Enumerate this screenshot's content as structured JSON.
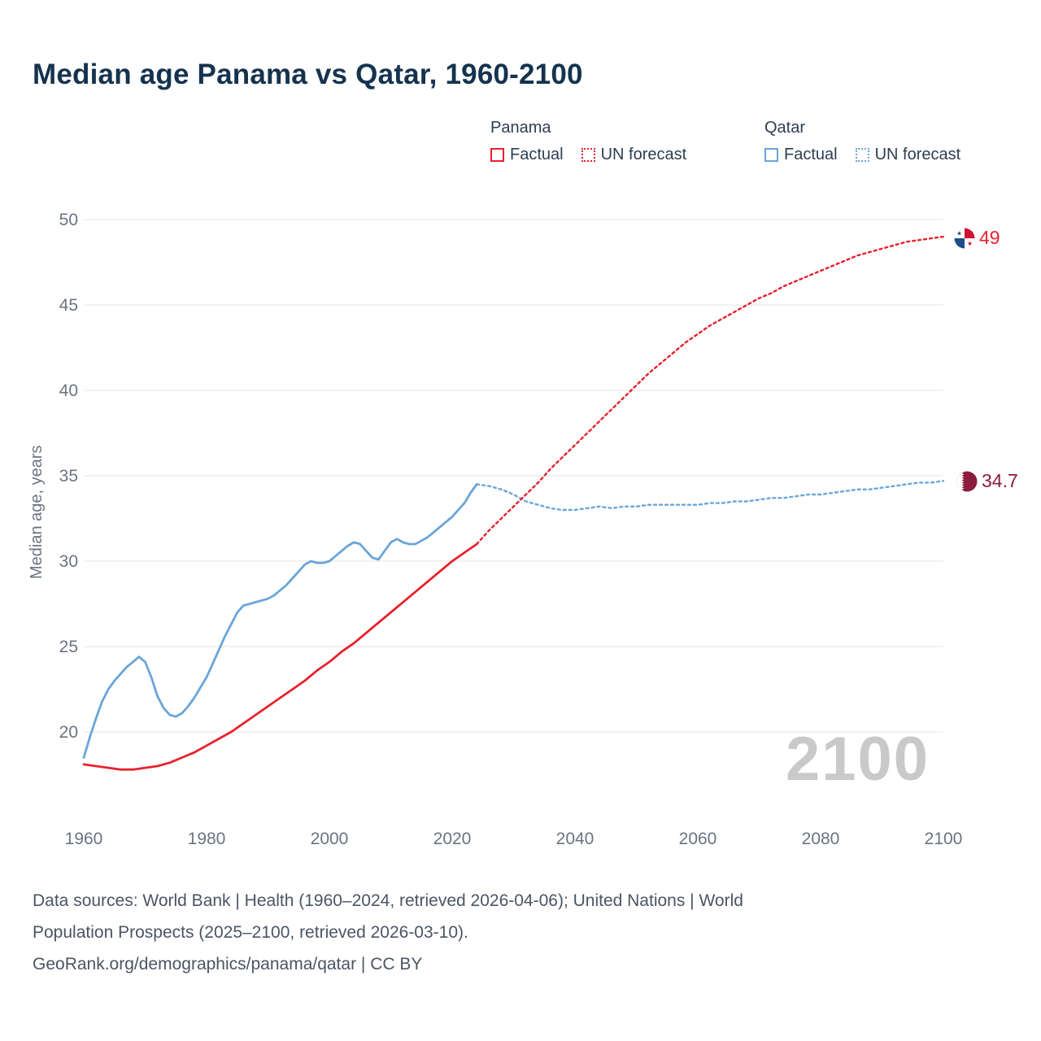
{
  "title": "Median age Panama vs Qatar, 1960-2100",
  "legend": {
    "panama": {
      "label": "Panama",
      "factual": "Factual",
      "forecast": "UN forecast"
    },
    "qatar": {
      "label": "Qatar",
      "factual": "Factual",
      "forecast": "UN forecast"
    }
  },
  "watermark": "2100",
  "end_labels": {
    "panama": "49",
    "qatar": "34.7"
  },
  "footer": {
    "line1": "Data sources: World Bank | Health (1960–2024, retrieved 2026-04-06); United Nations | World",
    "line2": "Population Prospects (2025–2100, retrieved 2026-03-10).",
    "line3": "GeoRank.org/demographics/panama/qatar | CC BY"
  },
  "colors": {
    "panama": "#e8212e",
    "qatar": "#6aa5d8",
    "qatar_label": "#8d1b3d",
    "grid": "#e4e4e4",
    "axis_text": "#6b7380",
    "title": "#15334e",
    "watermark": "#c9c9c9",
    "footer_text": "#4b5563"
  },
  "chart_data": {
    "type": "line",
    "title": "Median age Panama vs Qatar, 1960-2100",
    "xlabel": "",
    "ylabel": "Median age, years",
    "xlim": [
      1955,
      2112
    ],
    "ylim": [
      16.5,
      50
    ],
    "grid": "horizontal-only",
    "legend_position": "top-right",
    "yticks": [
      20,
      25,
      30,
      35,
      40,
      45,
      50
    ],
    "xticks": [
      1960,
      1980,
      2000,
      2020,
      2040,
      2060,
      2080,
      2100
    ],
    "series": [
      {
        "name": "Qatar factual",
        "country": "Qatar",
        "kind": "factual",
        "color_key": "qatar",
        "dash": false,
        "points": [
          [
            1960,
            18.5
          ],
          [
            1961,
            19.7
          ],
          [
            1962,
            20.8
          ],
          [
            1963,
            21.8
          ],
          [
            1964,
            22.5
          ],
          [
            1965,
            23.0
          ],
          [
            1966,
            23.4
          ],
          [
            1967,
            23.8
          ],
          [
            1968,
            24.1
          ],
          [
            1969,
            24.4
          ],
          [
            1970,
            24.1
          ],
          [
            1971,
            23.2
          ],
          [
            1972,
            22.1
          ],
          [
            1973,
            21.4
          ],
          [
            1974,
            21.0
          ],
          [
            1975,
            20.9
          ],
          [
            1976,
            21.1
          ],
          [
            1977,
            21.5
          ],
          [
            1978,
            22.0
          ],
          [
            1979,
            22.6
          ],
          [
            1980,
            23.2
          ],
          [
            1981,
            24.0
          ],
          [
            1982,
            24.8
          ],
          [
            1983,
            25.6
          ],
          [
            1984,
            26.3
          ],
          [
            1985,
            27.0
          ],
          [
            1986,
            27.4
          ],
          [
            1987,
            27.5
          ],
          [
            1988,
            27.6
          ],
          [
            1989,
            27.7
          ],
          [
            1990,
            27.8
          ],
          [
            1991,
            28.0
          ],
          [
            1992,
            28.3
          ],
          [
            1993,
            28.6
          ],
          [
            1994,
            29.0
          ],
          [
            1995,
            29.4
          ],
          [
            1996,
            29.8
          ],
          [
            1997,
            30.0
          ],
          [
            1998,
            29.9
          ],
          [
            1999,
            29.9
          ],
          [
            2000,
            30.0
          ],
          [
            2001,
            30.3
          ],
          [
            2002,
            30.6
          ],
          [
            2003,
            30.9
          ],
          [
            2004,
            31.1
          ],
          [
            2005,
            31.0
          ],
          [
            2006,
            30.6
          ],
          [
            2007,
            30.2
          ],
          [
            2008,
            30.1
          ],
          [
            2009,
            30.6
          ],
          [
            2010,
            31.1
          ],
          [
            2011,
            31.3
          ],
          [
            2012,
            31.1
          ],
          [
            2013,
            31.0
          ],
          [
            2014,
            31.0
          ],
          [
            2015,
            31.2
          ],
          [
            2016,
            31.4
          ],
          [
            2017,
            31.7
          ],
          [
            2018,
            32.0
          ],
          [
            2019,
            32.3
          ],
          [
            2020,
            32.6
          ],
          [
            2021,
            33.0
          ],
          [
            2022,
            33.4
          ],
          [
            2023,
            34.0
          ],
          [
            2024,
            34.5
          ]
        ]
      },
      {
        "name": "Qatar UN forecast",
        "country": "Qatar",
        "kind": "forecast",
        "color_key": "qatar",
        "dash": true,
        "points": [
          [
            2024,
            34.5
          ],
          [
            2026,
            34.4
          ],
          [
            2028,
            34.2
          ],
          [
            2030,
            33.9
          ],
          [
            2032,
            33.5
          ],
          [
            2034,
            33.3
          ],
          [
            2036,
            33.1
          ],
          [
            2038,
            33.0
          ],
          [
            2040,
            33.0
          ],
          [
            2042,
            33.1
          ],
          [
            2044,
            33.2
          ],
          [
            2046,
            33.1
          ],
          [
            2048,
            33.2
          ],
          [
            2050,
            33.2
          ],
          [
            2052,
            33.3
          ],
          [
            2054,
            33.3
          ],
          [
            2056,
            33.3
          ],
          [
            2058,
            33.3
          ],
          [
            2060,
            33.3
          ],
          [
            2062,
            33.4
          ],
          [
            2064,
            33.4
          ],
          [
            2066,
            33.5
          ],
          [
            2068,
            33.5
          ],
          [
            2070,
            33.6
          ],
          [
            2072,
            33.7
          ],
          [
            2074,
            33.7
          ],
          [
            2076,
            33.8
          ],
          [
            2078,
            33.9
          ],
          [
            2080,
            33.9
          ],
          [
            2082,
            34.0
          ],
          [
            2084,
            34.1
          ],
          [
            2086,
            34.2
          ],
          [
            2088,
            34.2
          ],
          [
            2090,
            34.3
          ],
          [
            2092,
            34.4
          ],
          [
            2094,
            34.5
          ],
          [
            2096,
            34.6
          ],
          [
            2098,
            34.6
          ],
          [
            2100,
            34.7
          ]
        ]
      },
      {
        "name": "Panama factual",
        "country": "Panama",
        "kind": "factual",
        "color_key": "panama",
        "dash": false,
        "points": [
          [
            1960,
            18.1
          ],
          [
            1962,
            18.0
          ],
          [
            1964,
            17.9
          ],
          [
            1966,
            17.8
          ],
          [
            1968,
            17.8
          ],
          [
            1970,
            17.9
          ],
          [
            1972,
            18.0
          ],
          [
            1974,
            18.2
          ],
          [
            1976,
            18.5
          ],
          [
            1978,
            18.8
          ],
          [
            1980,
            19.2
          ],
          [
            1982,
            19.6
          ],
          [
            1984,
            20.0
          ],
          [
            1986,
            20.5
          ],
          [
            1988,
            21.0
          ],
          [
            1990,
            21.5
          ],
          [
            1992,
            22.0
          ],
          [
            1994,
            22.5
          ],
          [
            1996,
            23.0
          ],
          [
            1998,
            23.6
          ],
          [
            2000,
            24.1
          ],
          [
            2002,
            24.7
          ],
          [
            2004,
            25.2
          ],
          [
            2006,
            25.8
          ],
          [
            2008,
            26.4
          ],
          [
            2010,
            27.0
          ],
          [
            2012,
            27.6
          ],
          [
            2014,
            28.2
          ],
          [
            2016,
            28.8
          ],
          [
            2018,
            29.4
          ],
          [
            2020,
            30.0
          ],
          [
            2022,
            30.5
          ],
          [
            2024,
            31.0
          ]
        ]
      },
      {
        "name": "Panama UN forecast",
        "country": "Panama",
        "kind": "forecast",
        "color_key": "panama",
        "dash": true,
        "points": [
          [
            2024,
            31.0
          ],
          [
            2026,
            31.8
          ],
          [
            2028,
            32.5
          ],
          [
            2030,
            33.2
          ],
          [
            2032,
            33.9
          ],
          [
            2034,
            34.6
          ],
          [
            2036,
            35.4
          ],
          [
            2038,
            36.1
          ],
          [
            2040,
            36.8
          ],
          [
            2042,
            37.5
          ],
          [
            2044,
            38.2
          ],
          [
            2046,
            38.9
          ],
          [
            2048,
            39.6
          ],
          [
            2050,
            40.3
          ],
          [
            2052,
            41.0
          ],
          [
            2054,
            41.6
          ],
          [
            2056,
            42.2
          ],
          [
            2058,
            42.8
          ],
          [
            2060,
            43.3
          ],
          [
            2062,
            43.8
          ],
          [
            2064,
            44.2
          ],
          [
            2066,
            44.6
          ],
          [
            2068,
            45.0
          ],
          [
            2070,
            45.4
          ],
          [
            2072,
            45.7
          ],
          [
            2074,
            46.1
          ],
          [
            2076,
            46.4
          ],
          [
            2078,
            46.7
          ],
          [
            2080,
            47.0
          ],
          [
            2082,
            47.3
          ],
          [
            2084,
            47.6
          ],
          [
            2086,
            47.9
          ],
          [
            2088,
            48.1
          ],
          [
            2090,
            48.3
          ],
          [
            2092,
            48.5
          ],
          [
            2094,
            48.7
          ],
          [
            2096,
            48.8
          ],
          [
            2098,
            48.9
          ],
          [
            2100,
            49.0
          ]
        ]
      }
    ],
    "end_values": {
      "Panama": 49,
      "Qatar": 34.7
    }
  }
}
